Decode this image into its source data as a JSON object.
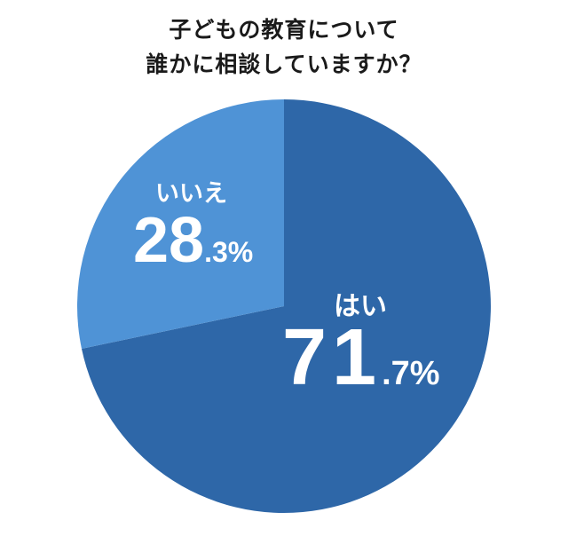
{
  "chart_data": {
    "type": "pie",
    "title": "子どもの教育について誰かに相談していますか？",
    "title_lines": [
      "子どもの教育について",
      "誰かに相談していますか？"
    ],
    "categories": [
      "はい",
      "いいえ"
    ],
    "values": [
      71.7,
      28.3
    ],
    "unit": "%",
    "colors": [
      "#2E67A8",
      "#4F93D6"
    ],
    "start_angle": "12 o'clock, clockwise",
    "legend": "none (direct labels)"
  },
  "labels": {
    "yes": {
      "category": "はい",
      "int": "71",
      "dec": ".7%"
    },
    "no": {
      "category": "いいえ",
      "int": "28",
      "dec": ".3%"
    }
  }
}
